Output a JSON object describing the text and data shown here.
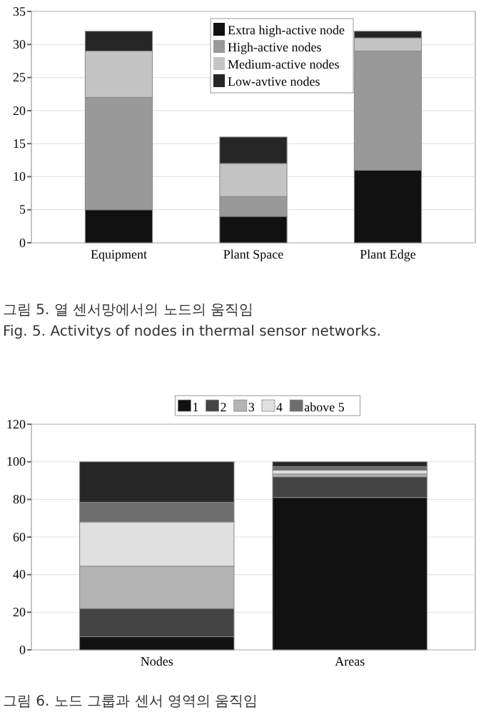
{
  "chart_data": [
    {
      "type": "bar",
      "stacked": true,
      "categories": [
        "Equipment",
        "Plant Space",
        "Plant Edge"
      ],
      "ylim": [
        0,
        35
      ],
      "yticks": [
        0,
        5,
        10,
        15,
        20,
        25,
        30,
        35
      ],
      "grid": "y",
      "legend": "top",
      "annotations": [
        "그림 5. 열 센서망에서의 노드의 움직임",
        "Fig. 5. Activitys of nodes in thermal sensor networks."
      ],
      "series": [
        {
          "name": "Extra high-active node",
          "color": "#111111",
          "values": [
            5,
            4,
            11
          ]
        },
        {
          "name": "High-active nodes",
          "color": "#999999",
          "values": [
            17,
            3,
            18
          ]
        },
        {
          "name": "Medium-active nodes",
          "color": "#c4c4c4",
          "values": [
            7,
            5,
            2
          ]
        },
        {
          "name": "Low-avtive nodes",
          "color": "#262626",
          "values": [
            3,
            4,
            1
          ]
        }
      ]
    },
    {
      "type": "bar",
      "stacked": true,
      "categories": [
        "Nodes",
        "Areas"
      ],
      "ylim": [
        0,
        120
      ],
      "yticks": [
        0,
        20,
        40,
        60,
        80,
        100,
        120
      ],
      "grid": "y",
      "legend": "top",
      "annotations": [
        "그림 6. 노드 그룹과 센서 영역의 움직임"
      ],
      "series": [
        {
          "name": "1",
          "color": "#111111",
          "values": [
            7,
            81
          ]
        },
        {
          "name": "2",
          "color": "#444444",
          "values": [
            15,
            11
          ]
        },
        {
          "name": "3",
          "color": "#b4b4b4",
          "values": [
            22.5,
            1.5
          ]
        },
        {
          "name": "4",
          "color": "#e0e0e0",
          "values": [
            23.5,
            2
          ]
        },
        {
          "name": "above 5",
          "color": "#6e6e6e",
          "values": [
            10.5,
            2
          ]
        },
        {
          "color": "#262626",
          "values": [
            21.5,
            2.5
          ]
        }
      ]
    }
  ]
}
